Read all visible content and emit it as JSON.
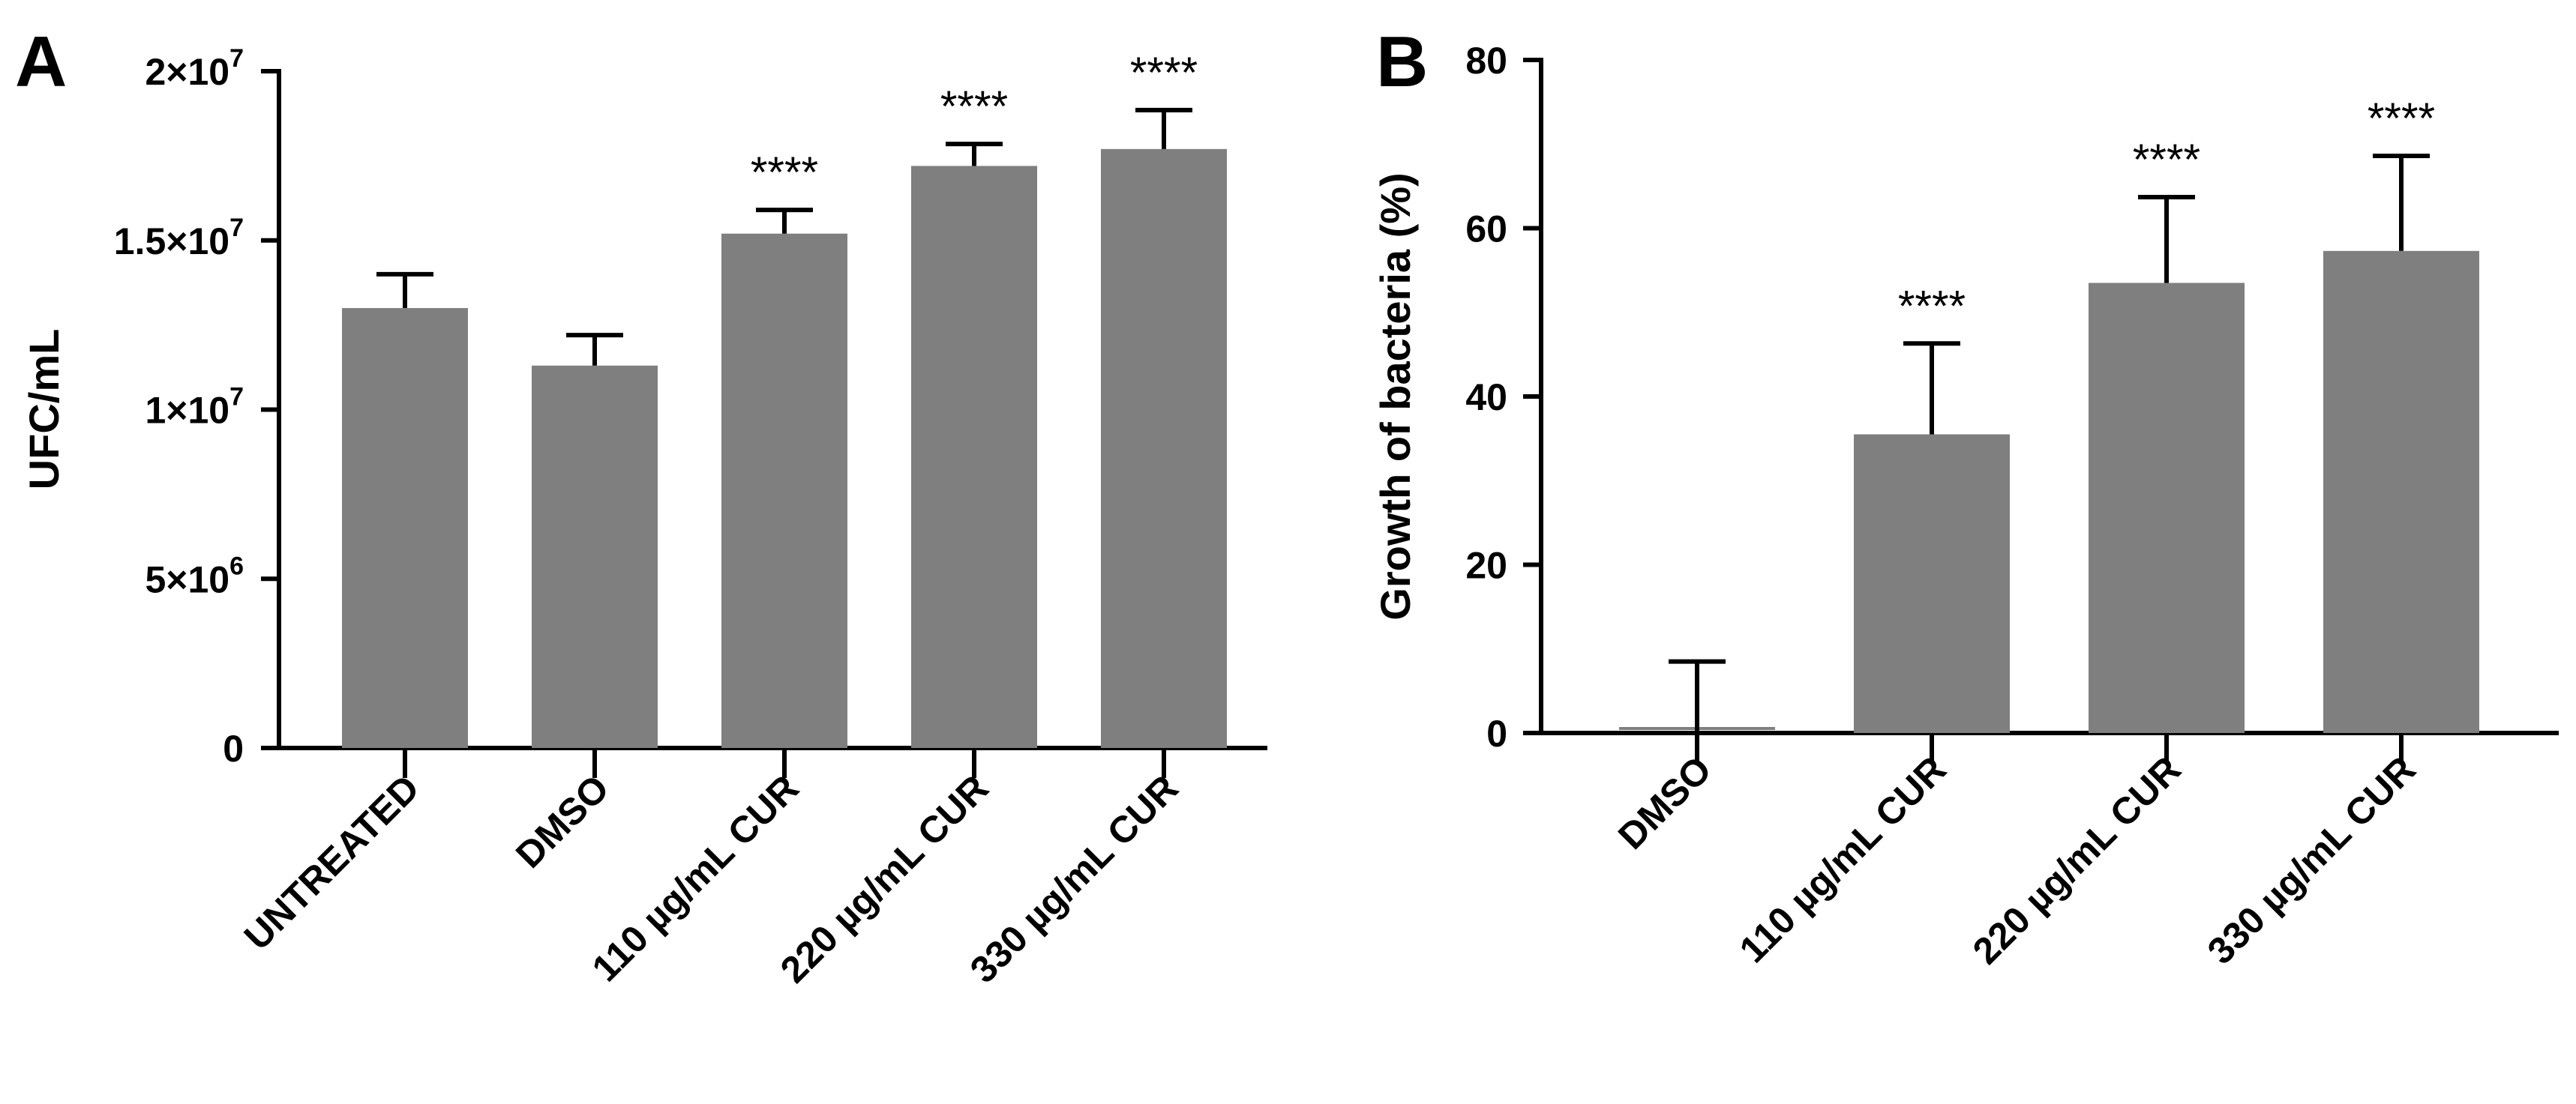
{
  "chart_data": [
    {
      "type": "bar",
      "panel": "A",
      "ylabel": "UFC/mL",
      "xlabel": "",
      "ylim": [
        0,
        20000000
      ],
      "yticks": [
        0,
        5000000,
        10000000,
        15000000,
        20000000
      ],
      "ytick_labels": [
        {
          "base": "0",
          "exp": ""
        },
        {
          "base": "5×10",
          "exp": "6"
        },
        {
          "base": "1×10",
          "exp": "7"
        },
        {
          "base": "1.5×10",
          "exp": "7"
        },
        {
          "base": "2×10",
          "exp": "7"
        }
      ],
      "categories": [
        "UNTREATED",
        "DMSO",
        "110 µg/mL CUR",
        "220 µg/mL CUR",
        "330 µg/mL CUR"
      ],
      "values": [
        13000000,
        11300000,
        15200000,
        17200000,
        17700000
      ],
      "errors": [
        1000000,
        900000,
        700000,
        650000,
        1150000
      ],
      "significance": [
        "",
        "",
        "****",
        "****",
        "****"
      ]
    },
    {
      "type": "bar",
      "panel": "B",
      "ylabel": "Growth of bacteria (%)",
      "xlabel": "",
      "ylim": [
        0,
        80
      ],
      "yticks": [
        0,
        20,
        40,
        60,
        80
      ],
      "ytick_labels": [
        {
          "base": "0",
          "exp": ""
        },
        {
          "base": "20",
          "exp": ""
        },
        {
          "base": "40",
          "exp": ""
        },
        {
          "base": "60",
          "exp": ""
        },
        {
          "base": "80",
          "exp": ""
        }
      ],
      "categories": [
        "DMSO",
        "110 µg/mL CUR",
        "220 µg/mL CUR",
        "330 µg/mL CUR"
      ],
      "values": [
        0,
        35.5,
        53.5,
        57.3
      ],
      "errors": [
        8.5,
        10.8,
        10.2,
        11.3
      ],
      "significance": [
        "",
        "****",
        "****",
        "****"
      ]
    }
  ]
}
